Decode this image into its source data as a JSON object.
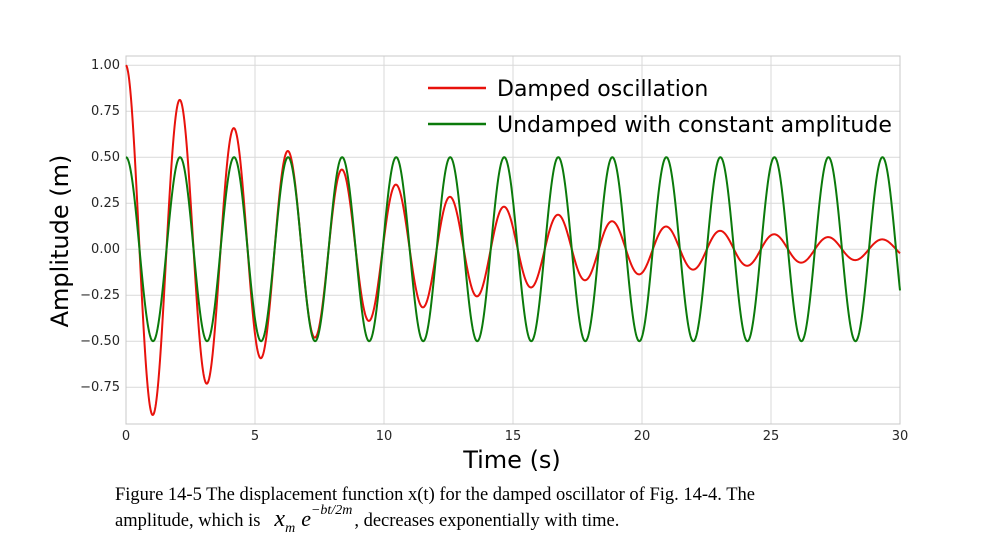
{
  "chart_data": {
    "type": "line",
    "xlabel": "Time (s)",
    "ylabel": "Amplitude (m)",
    "xlim": [
      0,
      30
    ],
    "ylim": [
      -0.95,
      1.05
    ],
    "x_ticks": [
      0,
      5,
      10,
      15,
      20,
      25,
      30
    ],
    "x_tick_labels": [
      "0",
      "5",
      "10",
      "15",
      "20",
      "25",
      "30"
    ],
    "y_ticks": [
      1.0,
      0.75,
      0.5,
      0.25,
      0.0,
      -0.25,
      -0.5,
      -0.75
    ],
    "y_tick_labels": [
      "1.00",
      "0.75",
      "0.50",
      "0.25",
      "0.00",
      "−0.25",
      "−0.50",
      "−0.75"
    ],
    "grid": true,
    "legend_position": "top-right",
    "series": [
      {
        "name": "Damped oscillation",
        "color": "#e8120c",
        "function": "damped",
        "amplitude": 1.0,
        "decay_rate": 0.1,
        "angular_frequency": 3.0,
        "peaks": [
          {
            "t": 0.0,
            "x": 1.0
          },
          {
            "t": 1.03,
            "x": -0.9
          },
          {
            "t": 2.08,
            "x": 0.81
          },
          {
            "t": 3.14,
            "x": -0.73
          },
          {
            "t": 4.19,
            "x": 0.66
          },
          {
            "t": 5.24,
            "x": -0.59
          },
          {
            "t": 6.29,
            "x": 0.53
          },
          {
            "t": 8.38,
            "x": 0.43
          },
          {
            "t": 10.47,
            "x": 0.35
          },
          {
            "t": 12.57,
            "x": 0.28
          },
          {
            "t": 14.66,
            "x": 0.23
          },
          {
            "t": 16.75,
            "x": 0.19
          },
          {
            "t": 18.85,
            "x": 0.15
          },
          {
            "t": 20.94,
            "x": 0.12
          },
          {
            "t": 23.04,
            "x": 0.1
          },
          {
            "t": 25.13,
            "x": 0.08
          },
          {
            "t": 27.23,
            "x": 0.07
          },
          {
            "t": 29.32,
            "x": 0.05
          }
        ]
      },
      {
        "name": "Undamped with constant amplitude",
        "color": "#0b7a0b",
        "function": "undamped",
        "amplitude": 0.5,
        "angular_frequency": 3.0
      }
    ]
  },
  "caption": {
    "line1": "Figure 14-5 The displacement function x(t) for the damped oscillator of Fig. 14-4. The",
    "line2_start": "amplitude, which is",
    "formula_base": "x",
    "formula_sub": "m",
    "formula_exp_base": "e",
    "formula_exp": "−bt/2m",
    "line2_end": ", decreases exponentially with time."
  }
}
